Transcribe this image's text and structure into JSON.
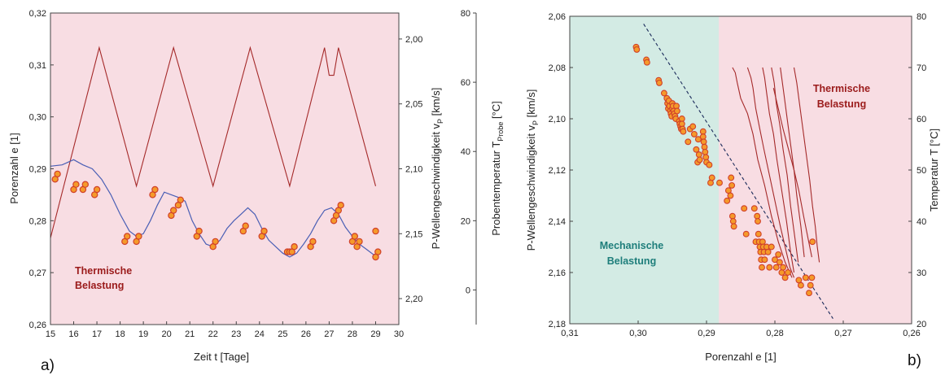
{
  "colors": {
    "thermal_bg": "#f8dde3",
    "mech_bg": "#d3ebe4",
    "temperature_line": "#a52a2a",
    "velocity_line": "#4a5fb5",
    "void_points_fill": "#f59a2a",
    "void_points_stroke": "#d0402a",
    "thermal_text": "#9b1b1b",
    "mech_text": "#1e7e7b",
    "regression_line": "#1a2a5a"
  },
  "chart_data": [
    {
      "panel_label": "a)",
      "type": "line",
      "xlabel": "Zeit  t [Tage]",
      "xlim": [
        15,
        30
      ],
      "xticks": [
        "15",
        "16",
        "17",
        "18",
        "19",
        "20",
        "21",
        "22",
        "23",
        "24",
        "25",
        "26",
        "27",
        "28",
        "29",
        "30"
      ],
      "ylabel_left": "Porenzahl  e [1]",
      "ylim_left": [
        0.26,
        0.32
      ],
      "yticks_left": [
        "0,26",
        "0,27",
        "0,28",
        "0,29",
        "0,30",
        "0,31",
        "0,32"
      ],
      "ylabel_velocity": "P-Wellengeschwindigkeit  v",
      "ylabel_velocity_sub": "P",
      "ylabel_velocity_unit": "[km/s]",
      "ylim_velocity": [
        2.22,
        1.98
      ],
      "yticks_velocity": [
        "2,00",
        "2,05",
        "2,10",
        "2,15",
        "2,20"
      ],
      "ylabel_temp": "Probentemperatur  T",
      "ylabel_temp_sub": "Probe",
      "ylabel_temp_unit": "[°C]",
      "ylim_temp": [
        -10,
        80
      ],
      "yticks_temp": [
        "0",
        "20",
        "40",
        "60",
        "80"
      ],
      "annotation_line1": "Thermische",
      "annotation_line2": "Belastung",
      "series": [
        {
          "role": "temperature",
          "x": [
            15.0,
            17.1,
            18.7,
            20.3,
            22.0,
            23.6,
            25.3,
            26.8,
            27.0,
            27.2,
            27.4,
            29.0
          ],
          "y": [
            15,
            70,
            30,
            70,
            30,
            70,
            30,
            70,
            62,
            62,
            70,
            30
          ]
        },
        {
          "role": "velocity",
          "x": [
            15.0,
            15.5,
            16.0,
            16.4,
            16.8,
            17.2,
            17.6,
            18.0,
            18.4,
            18.7,
            19.0,
            19.3,
            19.6,
            19.9,
            20.2,
            20.5,
            20.8,
            21.1,
            21.4,
            21.7,
            22.0,
            22.3,
            22.6,
            22.9,
            23.2,
            23.5,
            23.8,
            24.1,
            24.4,
            24.7,
            25.0,
            25.3,
            25.6,
            25.9,
            26.2,
            26.5,
            26.8,
            27.1,
            27.4,
            27.7,
            28.0,
            28.3,
            28.6,
            28.9,
            29.0
          ],
          "y": [
            2.098,
            2.097,
            2.093,
            2.097,
            2.1,
            2.108,
            2.12,
            2.135,
            2.148,
            2.152,
            2.15,
            2.14,
            2.128,
            2.118,
            2.12,
            2.122,
            2.125,
            2.14,
            2.15,
            2.158,
            2.16,
            2.155,
            2.146,
            2.14,
            2.135,
            2.13,
            2.135,
            2.146,
            2.155,
            2.16,
            2.165,
            2.168,
            2.165,
            2.158,
            2.15,
            2.14,
            2.132,
            2.13,
            2.135,
            2.145,
            2.152,
            2.158,
            2.162,
            2.166,
            2.166
          ]
        },
        {
          "role": "void_ratio",
          "x": [
            15.2,
            15.3,
            16.0,
            16.1,
            16.4,
            16.5,
            16.9,
            17.0,
            18.2,
            18.3,
            18.7,
            18.8,
            19.4,
            19.5,
            20.2,
            20.3,
            20.5,
            20.6,
            21.3,
            21.4,
            22.0,
            22.1,
            23.3,
            23.4,
            24.1,
            24.2,
            25.2,
            25.3,
            25.4,
            25.5,
            26.2,
            26.3,
            27.4,
            27.5,
            27.2,
            27.3,
            28.0,
            28.1,
            28.2,
            28.3,
            29.0,
            29.1,
            29.0
          ],
          "y": [
            0.288,
            0.289,
            0.286,
            0.287,
            0.286,
            0.287,
            0.285,
            0.286,
            0.276,
            0.277,
            0.276,
            0.277,
            0.285,
            0.286,
            0.281,
            0.282,
            0.283,
            0.284,
            0.277,
            0.278,
            0.275,
            0.276,
            0.278,
            0.279,
            0.277,
            0.278,
            0.274,
            0.274,
            0.274,
            0.275,
            0.275,
            0.276,
            0.282,
            0.283,
            0.28,
            0.281,
            0.276,
            0.277,
            0.275,
            0.276,
            0.278,
            0.274,
            0.273
          ]
        }
      ]
    },
    {
      "panel_label": "b)",
      "type": "scatter",
      "xlabel": "Porenzahl  e [1]",
      "xlim": [
        0.31,
        0.26
      ],
      "xticks": [
        "0,31",
        "0,30",
        "0,29",
        "0,28",
        "0,27",
        "0,26"
      ],
      "ylabel_left": "P-Wellengeschwindigkeit  v",
      "ylabel_left_sub": "P",
      "ylabel_left_unit": "[km/s]",
      "ylim_left": [
        2.06,
        2.18
      ],
      "yticks_left": [
        "2,06",
        "2,08",
        "2,10",
        "2,12",
        "2,14",
        "2,16",
        "2,18"
      ],
      "ylabel_right": "Temperatur  T [°C]",
      "ylim_right": [
        20,
        80
      ],
      "yticks_right": [
        "20",
        "30",
        "40",
        "50",
        "60",
        "70",
        "80"
      ],
      "mech_region_x": [
        0.31,
        0.2882
      ],
      "mech_label_line1": "Mechanische",
      "mech_label_line2": "Belastung",
      "thermal_label_line1": "Thermische",
      "thermal_label_line2": "Belastung",
      "regression": {
        "x": [
          0.2992,
          0.2715
        ],
        "y": [
          2.063,
          2.178
        ]
      },
      "points": {
        "x": [
          0.3003,
          0.3002,
          0.2988,
          0.2987,
          0.297,
          0.2969,
          0.2962,
          0.2958,
          0.2957,
          0.2956,
          0.2955,
          0.2954,
          0.2953,
          0.2952,
          0.2951,
          0.295,
          0.295,
          0.2949,
          0.2948,
          0.2947,
          0.2946,
          0.2945,
          0.2944,
          0.2943,
          0.294,
          0.2939,
          0.2938,
          0.2937,
          0.2936,
          0.2936,
          0.2935,
          0.2934,
          0.2927,
          0.2924,
          0.292,
          0.2918,
          0.2915,
          0.2913,
          0.2912,
          0.2911,
          0.291,
          0.2905,
          0.2905,
          0.2904,
          0.2903,
          0.2902,
          0.2901,
          0.29,
          0.2896,
          0.2894,
          0.2892,
          0.2881,
          0.287,
          0.2868,
          0.2865,
          0.2864,
          0.2863,
          0.2862,
          0.2861,
          0.286,
          0.2845,
          0.2842,
          0.283,
          0.2828,
          0.2826,
          0.2825,
          0.2824,
          0.2823,
          0.2822,
          0.2821,
          0.282,
          0.2819,
          0.2818,
          0.2817,
          0.2816,
          0.2815,
          0.2812,
          0.281,
          0.2808,
          0.2805,
          0.28,
          0.2798,
          0.2795,
          0.2793,
          0.279,
          0.2788,
          0.2785,
          0.2781,
          0.2765,
          0.2762,
          0.2755,
          0.275,
          0.2748,
          0.2746,
          0.2745
        ],
        "y": [
          2.072,
          2.073,
          2.077,
          2.078,
          2.085,
          2.086,
          2.09,
          2.092,
          2.094,
          2.096,
          2.093,
          2.095,
          2.097,
          2.098,
          2.099,
          2.094,
          2.096,
          2.095,
          2.097,
          2.098,
          2.099,
          2.1,
          2.095,
          2.097,
          2.101,
          2.102,
          2.103,
          2.104,
          2.1,
          2.102,
          2.104,
          2.105,
          2.109,
          2.104,
          2.103,
          2.106,
          2.112,
          2.117,
          2.108,
          2.114,
          2.116,
          2.105,
          2.107,
          2.109,
          2.111,
          2.113,
          2.115,
          2.117,
          2.118,
          2.125,
          2.123,
          2.125,
          2.132,
          2.128,
          2.13,
          2.123,
          2.126,
          2.138,
          2.14,
          2.142,
          2.135,
          2.145,
          2.135,
          2.148,
          2.138,
          2.14,
          2.145,
          2.148,
          2.15,
          2.152,
          2.155,
          2.158,
          2.148,
          2.15,
          2.152,
          2.155,
          2.15,
          2.152,
          2.158,
          2.15,
          2.155,
          2.158,
          2.153,
          2.156,
          2.16,
          2.158,
          2.162,
          2.16,
          2.163,
          2.165,
          2.162,
          2.168,
          2.165,
          2.162,
          2.148
        ]
      },
      "curves": [
        {
          "x": [
            0.2862,
            0.2858,
            0.2855,
            0.285,
            0.284,
            0.2832,
            0.2825,
            0.2815,
            0.2805,
            0.2795,
            0.2785,
            0.2775
          ],
          "y": [
            70,
            69,
            67,
            64,
            61,
            57,
            52,
            47,
            41,
            36,
            32,
            29
          ]
        },
        {
          "x": [
            0.284,
            0.2835,
            0.2832,
            0.2828,
            0.2822,
            0.2816,
            0.2808,
            0.28,
            0.2792,
            0.2785,
            0.2778,
            0.2772
          ],
          "y": [
            70,
            68,
            66,
            62,
            58,
            54,
            49,
            44,
            39,
            35,
            31,
            29
          ]
        },
        {
          "x": [
            0.2818,
            0.2815,
            0.2812,
            0.2808,
            0.2802,
            0.2797,
            0.279,
            0.2783,
            0.2777,
            0.2772
          ],
          "y": [
            70,
            68,
            65,
            61,
            57,
            52,
            46,
            40,
            34,
            30
          ]
        },
        {
          "x": [
            0.2805,
            0.2801,
            0.2798,
            0.2793,
            0.2788,
            0.2782,
            0.2777,
            0.2771,
            0.2766
          ],
          "y": [
            70,
            67,
            63,
            59,
            54,
            49,
            43,
            37,
            32
          ]
        },
        {
          "x": [
            0.2792,
            0.279,
            0.2786,
            0.2782,
            0.2777,
            0.2772,
            0.2768,
            0.2762,
            0.2757
          ],
          "y": [
            70,
            68,
            64,
            60,
            55,
            50,
            45,
            39,
            33
          ]
        },
        {
          "x": [
            0.2772,
            0.2768,
            0.2764,
            0.2759,
            0.2754,
            0.2749,
            0.2745,
            0.2741,
            0.2738,
            0.2735
          ],
          "y": [
            70,
            67,
            63,
            58,
            53,
            48,
            43,
            39,
            35,
            32
          ]
        },
        {
          "x": [
            0.2802,
            0.2795,
            0.2788,
            0.278,
            0.2772,
            0.2765,
            0.2758,
            0.2752,
            0.2746
          ],
          "y": [
            66,
            62,
            58,
            54,
            50,
            46,
            41,
            37,
            33
          ]
        }
      ]
    }
  ]
}
